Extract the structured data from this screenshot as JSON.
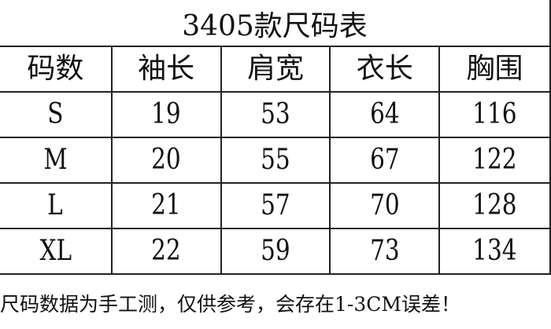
{
  "title": "3405款尺码表",
  "headers": [
    "码数",
    "袖长",
    "肩宽",
    "衣长",
    "胸围"
  ],
  "rows": [
    [
      "S",
      "19",
      "53",
      "64",
      "116"
    ],
    [
      "M",
      "20",
      "55",
      "67",
      "122"
    ],
    [
      "L",
      "21",
      "57",
      "70",
      "128"
    ],
    [
      "XL",
      "22",
      "59",
      "73",
      "134"
    ]
  ],
  "footer": "尺码数据为手工测，仅供参考，会存在1-3CM误差！"
}
